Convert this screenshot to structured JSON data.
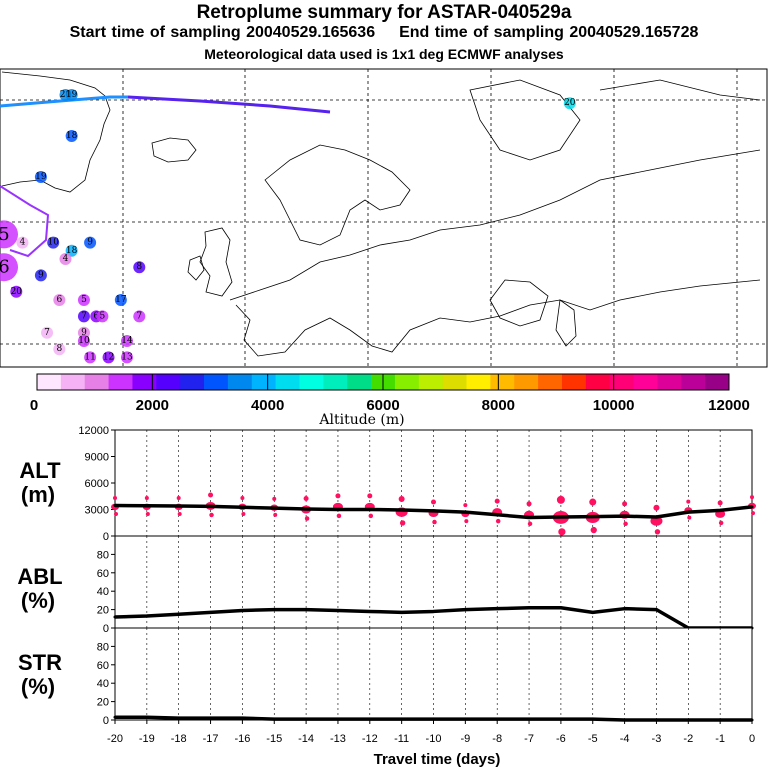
{
  "header": {
    "title": "Retroplume summary for ASTAR-040529a",
    "start_label": "Start time of sampling 20040529.165636",
    "end_label": "End time of sampling 20040529.165728",
    "met_label": "Meteorological data used is 1x1 deg ECMWF analyses"
  },
  "colorbar": {
    "title": "Altitude (m)",
    "tick_labels": [
      "0",
      "2000",
      "4000",
      "6000",
      "8000",
      "10000",
      "12000"
    ],
    "colors": [
      "#ffe6ff",
      "#f5b3f5",
      "#e680e6",
      "#cc33ff",
      "#8a00ff",
      "#5500ff",
      "#2222ee",
      "#0055ff",
      "#0088ee",
      "#00b3ff",
      "#00ddee",
      "#00ffe0",
      "#00eebb",
      "#00dd88",
      "#44dd00",
      "#88ee00",
      "#bbee00",
      "#dddd00",
      "#ffee00",
      "#ffbb00",
      "#ff9900",
      "#ff6600",
      "#ff3300",
      "#ff0044",
      "#ff0077",
      "#ff0099",
      "#dd0099",
      "#bb0099",
      "#990088"
    ]
  },
  "map": {
    "labels": [
      {
        "t": "20",
        "lon": -20,
        "lat": 79,
        "alt": 3500
      },
      {
        "t": "19",
        "lon": -19,
        "lat": 79,
        "alt": 3400
      },
      {
        "t": "20",
        "lon": 62,
        "lat": 78,
        "alt": 4500
      },
      {
        "t": "18",
        "lon": -19,
        "lat": 74,
        "alt": 3200
      },
      {
        "t": "19",
        "lon": -24,
        "lat": 69,
        "alt": 3000
      },
      {
        "t": "5",
        "lon": -30,
        "lat": 62,
        "alt": 1500,
        "big": true
      },
      {
        "t": "6",
        "lon": -30,
        "lat": 58,
        "alt": 1500,
        "big": true
      },
      {
        "t": "4",
        "lon": -27,
        "lat": 61,
        "alt": 800
      },
      {
        "t": "10",
        "lon": -22,
        "lat": 61,
        "alt": 2500
      },
      {
        "t": "9",
        "lon": -16,
        "lat": 61,
        "alt": 3000
      },
      {
        "t": "18",
        "lon": -19,
        "lat": 60,
        "alt": 3800
      },
      {
        "t": "4",
        "lon": -20,
        "lat": 59,
        "alt": 1200
      },
      {
        "t": "9",
        "lon": -24,
        "lat": 57,
        "alt": 2800
      },
      {
        "t": "20",
        "lon": -28,
        "lat": 55,
        "alt": 2000
      },
      {
        "t": "8",
        "lon": -8,
        "lat": 58,
        "alt": 2300
      },
      {
        "t": "6",
        "lon": -21,
        "lat": 54,
        "alt": 1000
      },
      {
        "t": "5",
        "lon": -17,
        "lat": 54,
        "alt": 1500
      },
      {
        "t": "17",
        "lon": -11,
        "lat": 54,
        "alt": 3000
      },
      {
        "t": "7",
        "lon": -17,
        "lat": 52,
        "alt": 2200
      },
      {
        "t": "6",
        "lon": -15,
        "lat": 52,
        "alt": 1700
      },
      {
        "t": "5",
        "lon": -14,
        "lat": 52,
        "alt": 1500
      },
      {
        "t": "7",
        "lon": -8,
        "lat": 52,
        "alt": 1300
      },
      {
        "t": "7",
        "lon": -23,
        "lat": 50,
        "alt": 800
      },
      {
        "t": "9",
        "lon": -17,
        "lat": 50,
        "alt": 1200
      },
      {
        "t": "10",
        "lon": -17,
        "lat": 49,
        "alt": 1300
      },
      {
        "t": "14",
        "lon": -10,
        "lat": 49,
        "alt": 1600
      },
      {
        "t": "8",
        "lon": -21,
        "lat": 48,
        "alt": 600
      },
      {
        "t": "11",
        "lon": -16,
        "lat": 47,
        "alt": 1600
      },
      {
        "t": "12",
        "lon": -13,
        "lat": 47,
        "alt": 1700
      },
      {
        "t": "13",
        "lon": -10,
        "lat": 47,
        "alt": 1600
      }
    ]
  },
  "chart_data": [
    {
      "type": "line",
      "title": "ALT",
      "ylabel": "(m)",
      "x": [
        -20,
        -19,
        -18,
        -17,
        -16,
        -15,
        -14,
        -13,
        -12,
        -11,
        -10,
        -9,
        -8,
        -7,
        -6,
        -5,
        -4,
        -3,
        -2,
        -1,
        0
      ],
      "values": [
        3450,
        3420,
        3400,
        3350,
        3250,
        3150,
        3050,
        3000,
        3000,
        2950,
        2850,
        2700,
        2400,
        2100,
        2150,
        2200,
        2250,
        2150,
        2700,
        2900,
        3300
      ],
      "xlim": [
        -20,
        0
      ],
      "ylim": [
        0,
        12000
      ],
      "yticks": [
        0,
        3000,
        6000,
        9000,
        12000
      ],
      "ytick_labels": [
        "0",
        "3000",
        "6000",
        "9000",
        "12000"
      ],
      "particle_clusters": [
        {
          "x": -20,
          "alt": 3300,
          "size": 4
        },
        {
          "x": -19,
          "alt": 3300,
          "size": 4
        },
        {
          "x": -18,
          "alt": 3300,
          "size": 4
        },
        {
          "x": -17,
          "alt": 3400,
          "size": 5
        },
        {
          "x": -16,
          "alt": 3300,
          "size": 4
        },
        {
          "x": -15,
          "alt": 3200,
          "size": 4
        },
        {
          "x": -14,
          "alt": 3000,
          "size": 5
        },
        {
          "x": -13,
          "alt": 3300,
          "size": 5
        },
        {
          "x": -12,
          "alt": 3300,
          "size": 5
        },
        {
          "x": -11,
          "alt": 2700,
          "size": 6
        },
        {
          "x": -10,
          "alt": 2600,
          "size": 5
        },
        {
          "x": -9,
          "alt": 2500,
          "size": 4
        },
        {
          "x": -8,
          "alt": 2700,
          "size": 5
        },
        {
          "x": -7,
          "alt": 2400,
          "size": 5
        },
        {
          "x": -6,
          "alt": 2100,
          "size": 8
        },
        {
          "x": -5,
          "alt": 2100,
          "size": 7
        },
        {
          "x": -4,
          "alt": 2400,
          "size": 5
        },
        {
          "x": -3,
          "alt": 1700,
          "size": 6
        },
        {
          "x": -2,
          "alt": 2900,
          "size": 4
        },
        {
          "x": -1,
          "alt": 2500,
          "size": 5
        },
        {
          "x": 0,
          "alt": 3400,
          "size": 4
        }
      ]
    },
    {
      "type": "line",
      "title": "ABL",
      "ylabel": "(%)",
      "x": [
        -20,
        -19,
        -18,
        -17,
        -16,
        -15,
        -14,
        -13,
        -12,
        -11,
        -10,
        -9,
        -8,
        -7,
        -6,
        -5,
        -4,
        -3,
        -2,
        -1,
        0
      ],
      "values": [
        12,
        13,
        15,
        17,
        19,
        20,
        20,
        19,
        18,
        17,
        18,
        20,
        21,
        22,
        22,
        17,
        21,
        20,
        0,
        0,
        0
      ],
      "xlim": [
        -20,
        0
      ],
      "ylim": [
        0,
        100
      ],
      "yticks": [
        0,
        20,
        40,
        60,
        80
      ],
      "ytick_labels": [
        "0",
        "20",
        "40",
        "60",
        "80"
      ]
    },
    {
      "type": "line",
      "title": "STR",
      "ylabel": "(%)",
      "x": [
        -20,
        -19,
        -18,
        -17,
        -16,
        -15,
        -14,
        -13,
        -12,
        -11,
        -10,
        -9,
        -8,
        -7,
        -6,
        -5,
        -4,
        -3,
        -2,
        -1,
        0
      ],
      "values": [
        3,
        3,
        2,
        2,
        2,
        1,
        1,
        1,
        1,
        1,
        1,
        1,
        1,
        1,
        1,
        1,
        0,
        0,
        0,
        0,
        0
      ],
      "xlim": [
        -20,
        0
      ],
      "ylim": [
        0,
        100
      ],
      "yticks": [
        0,
        20,
        40,
        60,
        80
      ],
      "ytick_labels": [
        "0",
        "20",
        "40",
        "60",
        "80"
      ],
      "xlabel": "Travel time (days)",
      "xticks": [
        -20,
        -19,
        -18,
        -17,
        -16,
        -15,
        -14,
        -13,
        -12,
        -11,
        -10,
        -9,
        -8,
        -7,
        -6,
        -5,
        -4,
        -3,
        -2,
        -1,
        0
      ],
      "xtick_labels": [
        "-20",
        "-19",
        "-18",
        "-17",
        "-16",
        "-15",
        "-14",
        "-13",
        "-12",
        "-11",
        "-10",
        "-9",
        "-8",
        "-7",
        "-6",
        "-5",
        "-4",
        "-3",
        "-2",
        "-1",
        "0"
      ]
    }
  ]
}
